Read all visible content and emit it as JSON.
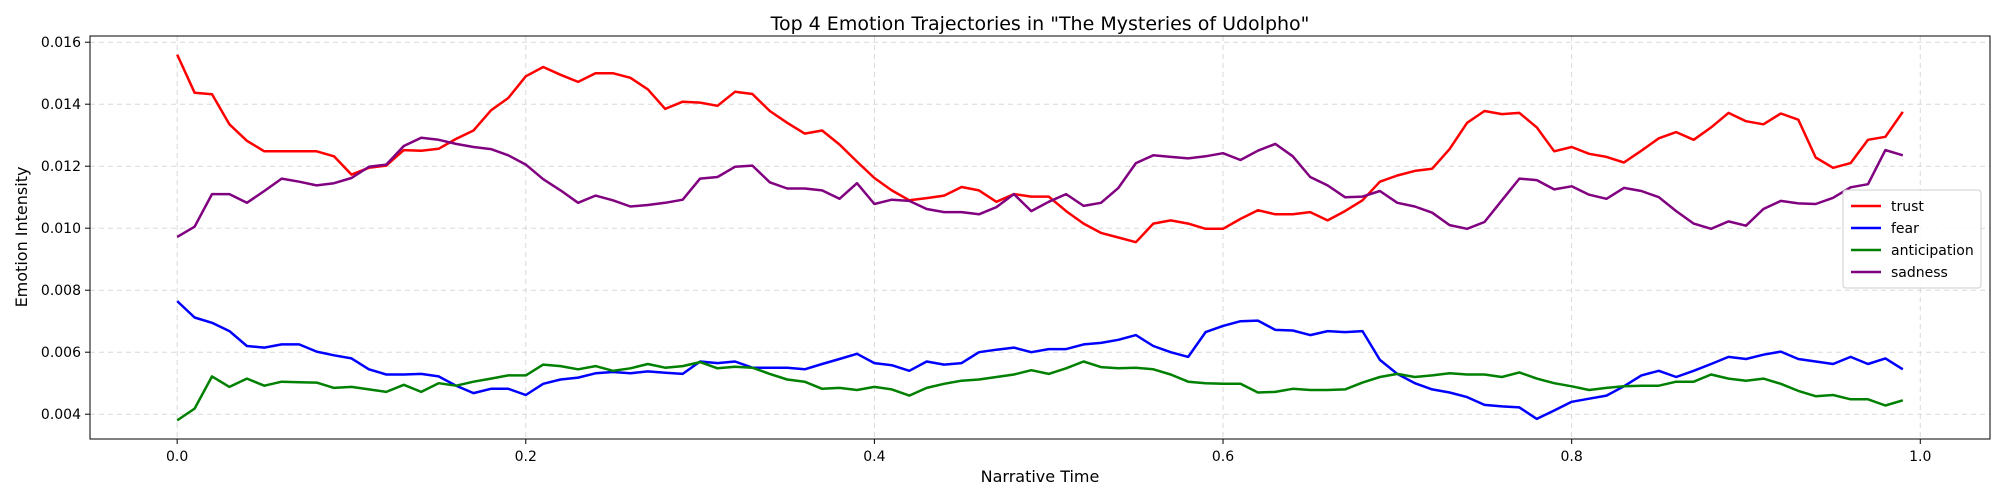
{
  "chart_data": {
    "type": "line",
    "title": "Top 4 Emotion Trajectories in \"The Mysteries of Udolpho\"",
    "xlabel": "Narrative Time",
    "ylabel": "Emotion Intensity",
    "xlim": [
      -0.05,
      1.04
    ],
    "ylim": [
      0.0032,
      0.0162
    ],
    "xticks": [
      0.0,
      0.2,
      0.4,
      0.6,
      0.8,
      1.0
    ],
    "xtick_labels": [
      "0.0",
      "0.2",
      "0.4",
      "0.6",
      "0.8",
      "1.0"
    ],
    "yticks": [
      0.004,
      0.006,
      0.008,
      0.01,
      0.012,
      0.014,
      0.016
    ],
    "ytick_labels": [
      "0.004",
      "0.006",
      "0.008",
      "0.010",
      "0.012",
      "0.014",
      "0.016"
    ],
    "grid": true,
    "legend_position": "center-right",
    "x": [
      0.0,
      0.01,
      0.02,
      0.03,
      0.04,
      0.05,
      0.06,
      0.07,
      0.08,
      0.09,
      0.1,
      0.11,
      0.12,
      0.13,
      0.14,
      0.15,
      0.16,
      0.17,
      0.18,
      0.19,
      0.2,
      0.21,
      0.22,
      0.23,
      0.24,
      0.25,
      0.26,
      0.27,
      0.28,
      0.29,
      0.3,
      0.31,
      0.32,
      0.33,
      0.34,
      0.35,
      0.36,
      0.37,
      0.38,
      0.39,
      0.4,
      0.41,
      0.42,
      0.43,
      0.44,
      0.45,
      0.46,
      0.47,
      0.48,
      0.49,
      0.5,
      0.51,
      0.52,
      0.53,
      0.54,
      0.55,
      0.56,
      0.57,
      0.58,
      0.59,
      0.6,
      0.61,
      0.62,
      0.63,
      0.64,
      0.65,
      0.66,
      0.67,
      0.68,
      0.69,
      0.7,
      0.71,
      0.72,
      0.73,
      0.74,
      0.75,
      0.76,
      0.77,
      0.78,
      0.79,
      0.8,
      0.81,
      0.82,
      0.83,
      0.84,
      0.85,
      0.86,
      0.87,
      0.88,
      0.89,
      0.9,
      0.91,
      0.92,
      0.93,
      0.94,
      0.95,
      0.96,
      0.97,
      0.98,
      0.99
    ],
    "series": [
      {
        "name": "trust",
        "color": "#ff0000",
        "values": [
          0.0156,
          0.01437,
          0.01432,
          0.01335,
          0.01282,
          0.01248,
          0.01248,
          0.01248,
          0.01248,
          0.01232,
          0.01173,
          0.01195,
          0.01202,
          0.01252,
          0.0125,
          0.01256,
          0.01288,
          0.01315,
          0.0138,
          0.0142,
          0.0149,
          0.0152,
          0.01495,
          0.01472,
          0.015,
          0.015,
          0.01485,
          0.01448,
          0.01385,
          0.01408,
          0.01405,
          0.01395,
          0.0144,
          0.01433,
          0.01378,
          0.0134,
          0.01305,
          0.01315,
          0.0127,
          0.01215,
          0.01162,
          0.01122,
          0.0109,
          0.01097,
          0.01105,
          0.01133,
          0.01122,
          0.01085,
          0.0111,
          0.01102,
          0.01102,
          0.01055,
          0.01015,
          0.00985,
          0.0097,
          0.00955,
          0.01015,
          0.01025,
          0.01015,
          0.00998,
          0.00998,
          0.0103,
          0.01058,
          0.01045,
          0.01045,
          0.01052,
          0.01025,
          0.01055,
          0.0109,
          0.0115,
          0.0117,
          0.01185,
          0.01192,
          0.01255,
          0.0134,
          0.01378,
          0.01368,
          0.01372,
          0.01325,
          0.01248,
          0.01262,
          0.0124,
          0.0123,
          0.01212,
          0.0125,
          0.0129,
          0.0131,
          0.01285,
          0.01325,
          0.01372,
          0.01345,
          0.01335,
          0.0137,
          0.0135,
          0.01228,
          0.01195,
          0.0121,
          0.01285,
          0.01295,
          0.01375
        ]
      },
      {
        "name": "fear",
        "color": "#0000ff",
        "values": [
          0.00765,
          0.00712,
          0.00695,
          0.00668,
          0.0062,
          0.00615,
          0.00625,
          0.00625,
          0.00602,
          0.0059,
          0.0058,
          0.00545,
          0.00528,
          0.00528,
          0.0053,
          0.00522,
          0.00492,
          0.00468,
          0.00482,
          0.00482,
          0.00462,
          0.00498,
          0.00512,
          0.00518,
          0.00532,
          0.00536,
          0.00532,
          0.00538,
          0.00534,
          0.0053,
          0.0057,
          0.00565,
          0.0057,
          0.0055,
          0.0055,
          0.0055,
          0.00545,
          0.00562,
          0.00578,
          0.00595,
          0.00565,
          0.00558,
          0.0054,
          0.0057,
          0.0056,
          0.00565,
          0.006,
          0.00608,
          0.00615,
          0.006,
          0.0061,
          0.0061,
          0.00625,
          0.0063,
          0.0064,
          0.00655,
          0.0062,
          0.006,
          0.00585,
          0.00665,
          0.00685,
          0.007,
          0.00702,
          0.00672,
          0.0067,
          0.00655,
          0.00668,
          0.00665,
          0.00668,
          0.00575,
          0.0053,
          0.005,
          0.0048,
          0.0047,
          0.00455,
          0.0043,
          0.00425,
          0.00422,
          0.00385,
          0.00412,
          0.0044,
          0.0045,
          0.0046,
          0.0049,
          0.00525,
          0.0054,
          0.0052,
          0.0054,
          0.00562,
          0.00585,
          0.00578,
          0.00592,
          0.00602,
          0.00578,
          0.0057,
          0.00562,
          0.00585,
          0.00562,
          0.0058,
          0.00545
        ]
      },
      {
        "name": "anticipation",
        "color": "#008000",
        "values": [
          0.0038,
          0.00418,
          0.00522,
          0.00488,
          0.00515,
          0.00492,
          0.00505,
          0.00503,
          0.00502,
          0.00485,
          0.00488,
          0.0048,
          0.00472,
          0.00495,
          0.00472,
          0.005,
          0.00492,
          0.00505,
          0.00515,
          0.00525,
          0.00525,
          0.0056,
          0.00555,
          0.00545,
          0.00555,
          0.0054,
          0.00548,
          0.00562,
          0.0055,
          0.00555,
          0.00568,
          0.00548,
          0.00553,
          0.0055,
          0.0053,
          0.00512,
          0.00505,
          0.00482,
          0.00485,
          0.00478,
          0.00488,
          0.0048,
          0.0046,
          0.00485,
          0.00498,
          0.00508,
          0.00512,
          0.0052,
          0.00528,
          0.00542,
          0.0053,
          0.00548,
          0.0057,
          0.00552,
          0.00548,
          0.0055,
          0.00545,
          0.00528,
          0.00505,
          0.005,
          0.00498,
          0.00498,
          0.0047,
          0.00472,
          0.00482,
          0.00478,
          0.00478,
          0.0048,
          0.00502,
          0.0052,
          0.0053,
          0.0052,
          0.00525,
          0.00532,
          0.00528,
          0.00528,
          0.0052,
          0.00535,
          0.00515,
          0.005,
          0.0049,
          0.00478,
          0.00485,
          0.0049,
          0.00492,
          0.00492,
          0.00505,
          0.00505,
          0.00528,
          0.00515,
          0.00508,
          0.00515,
          0.00498,
          0.00475,
          0.00458,
          0.00462,
          0.00448,
          0.00448,
          0.00428,
          0.00445
        ]
      },
      {
        "name": "sadness",
        "color": "#800080",
        "values": [
          0.00972,
          0.01005,
          0.0111,
          0.0111,
          0.01082,
          0.0112,
          0.0116,
          0.0115,
          0.01138,
          0.01145,
          0.01162,
          0.01198,
          0.01205,
          0.01265,
          0.01292,
          0.01285,
          0.01272,
          0.01262,
          0.01255,
          0.01235,
          0.01205,
          0.01158,
          0.01122,
          0.01082,
          0.01105,
          0.0109,
          0.0107,
          0.01075,
          0.01082,
          0.01092,
          0.0116,
          0.01165,
          0.01198,
          0.01202,
          0.01148,
          0.01128,
          0.01128,
          0.01122,
          0.01095,
          0.01145,
          0.01078,
          0.01092,
          0.01088,
          0.01062,
          0.01052,
          0.01052,
          0.01045,
          0.01068,
          0.0111,
          0.01055,
          0.01085,
          0.0111,
          0.01072,
          0.01082,
          0.0113,
          0.0121,
          0.01235,
          0.0123,
          0.01225,
          0.01232,
          0.01242,
          0.0122,
          0.0125,
          0.01272,
          0.01232,
          0.01165,
          0.01138,
          0.011,
          0.01102,
          0.0112,
          0.01082,
          0.0107,
          0.0105,
          0.0101,
          0.00998,
          0.0102,
          0.0109,
          0.0116,
          0.01155,
          0.01125,
          0.01135,
          0.01108,
          0.01095,
          0.0113,
          0.0112,
          0.011,
          0.01055,
          0.01015,
          0.00998,
          0.01022,
          0.01008,
          0.01062,
          0.01088,
          0.0108,
          0.01078,
          0.01098,
          0.01132,
          0.01142,
          0.01252,
          0.01235
        ]
      }
    ]
  }
}
